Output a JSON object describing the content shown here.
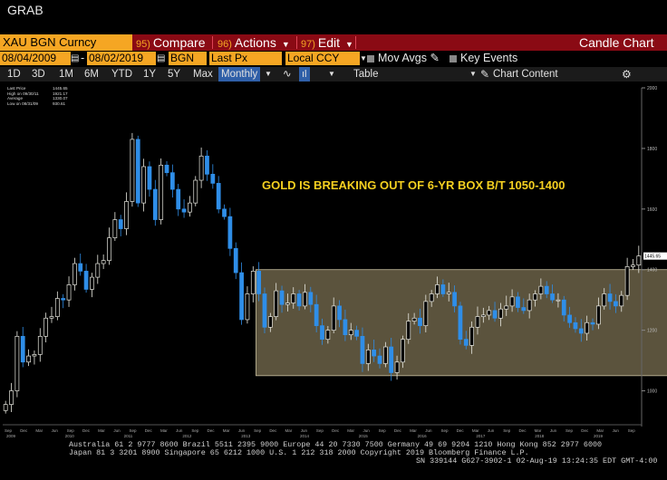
{
  "window": {
    "title": "GRAB"
  },
  "toolbar": {
    "security": "XAU BGN Curncy",
    "compare": {
      "num": "95)",
      "label": "Compare"
    },
    "actions": {
      "num": "96)",
      "label": "Actions"
    },
    "edit": {
      "num": "97)",
      "label": "Edit"
    },
    "chart_type": "Candle Chart"
  },
  "params": {
    "start_date": "08/04/2009",
    "end_date": "08/02/2019",
    "source": "BGN",
    "field": "Last Px",
    "currency": "Local CCY",
    "mov_avgs": "Mov Avgs",
    "key_events": "Key Events"
  },
  "periods": {
    "items": [
      "1D",
      "3D",
      "1M",
      "6M",
      "YTD",
      "1Y",
      "5Y",
      "Max"
    ],
    "frequency": "Monthly",
    "table": "Table",
    "chart_content": "Chart Content"
  },
  "legend": {
    "last_price": "Last Price",
    "last_price_val": "1445.65",
    "high": "High on 09/30/11",
    "high_val": "1921.17",
    "average": "Average",
    "average_val": "1330.07",
    "low": "Low on 08/31/09",
    "low_val": "930.61"
  },
  "annotation": "GOLD IS BREAKING OUT OF 6-YR BOX B/T 1050-1400",
  "last_value_tag": "1445.65",
  "colors": {
    "up": "#e8e8e0",
    "down": "#2f8ee8",
    "box": "#7a6f52",
    "accent": "#f5a623",
    "red_bar": "#8a0a14",
    "annotation": "#f5d020"
  },
  "footer": {
    "line1": "Australia 61 2 9777 8600 Brazil 5511 2395 9000 Europe 44 20 7330 7500 Germany 49 69 9204 1210 Hong Kong 852 2977 6000",
    "line2": "Japan 81 3 3201 8900          Singapore 65 6212 1000          U.S. 1 212 318 2000          Copyright 2019 Bloomberg Finance L.P.",
    "line3": "SN 339144 G627-3902-1 02-Aug-19 13:24:35 EDT  GMT-4:00"
  },
  "chart_data": {
    "type": "candlestick",
    "title": "",
    "frequency": "monthly",
    "ylim": [
      900,
      2000
    ],
    "yticks": [
      1000,
      1200,
      1400,
      1600,
      1800,
      2000
    ],
    "box": {
      "low": 1050,
      "high": 1400,
      "start": "2013-04",
      "end": "2019-07"
    },
    "x_month_labels": [
      "Sep",
      "Dec",
      "Mar",
      "Jun",
      "Sep",
      "Dec",
      "Mar",
      "Jun",
      "Sep",
      "Dec",
      "Mar",
      "Jun",
      "Sep",
      "Dec",
      "Mar",
      "Jun",
      "Sep",
      "Dec",
      "Mar",
      "Jun",
      "Sep",
      "Dec",
      "Mar",
      "Jun",
      "Sep",
      "Dec",
      "Mar",
      "Jun",
      "Sep",
      "Dec",
      "Mar",
      "Jun",
      "Sep",
      "Dec",
      "Mar",
      "Jun",
      "Sep",
      "Dec",
      "Mar",
      "Jun",
      "Sep"
    ],
    "x_years": [
      "2009",
      "2010",
      "2011",
      "2012",
      "2013",
      "2014",
      "2015",
      "2016",
      "2017",
      "2018",
      "2019"
    ],
    "closes": [
      955,
      1000,
      1180,
      1095,
      1115,
      1120,
      1180,
      1240,
      1245,
      1305,
      1300,
      1350,
      1420,
      1395,
      1335,
      1375,
      1420,
      1430,
      1505,
      1565,
      1535,
      1625,
      1830,
      1620,
      1740,
      1665,
      1565,
      1745,
      1720,
      1665,
      1600,
      1590,
      1620,
      1695,
      1775,
      1715,
      1685,
      1600,
      1575,
      1470,
      1390,
      1235,
      1320,
      1395,
      1320,
      1210,
      1245,
      1330,
      1285,
      1290,
      1320,
      1280,
      1325,
      1285,
      1215,
      1170,
      1200,
      1280,
      1235,
      1185,
      1200,
      1180,
      1090,
      1135,
      1115,
      1090,
      1145,
      1060,
      1095,
      1170,
      1230,
      1240,
      1215,
      1295,
      1320,
      1350,
      1320,
      1325,
      1280,
      1170,
      1150,
      1210,
      1245,
      1250,
      1265,
      1240,
      1270,
      1280,
      1310,
      1275,
      1265,
      1300,
      1320,
      1345,
      1320,
      1300,
      1300,
      1250,
      1225,
      1205,
      1190,
      1225,
      1220,
      1280,
      1320,
      1295,
      1280,
      1315,
      1410,
      1415,
      1445
    ]
  }
}
